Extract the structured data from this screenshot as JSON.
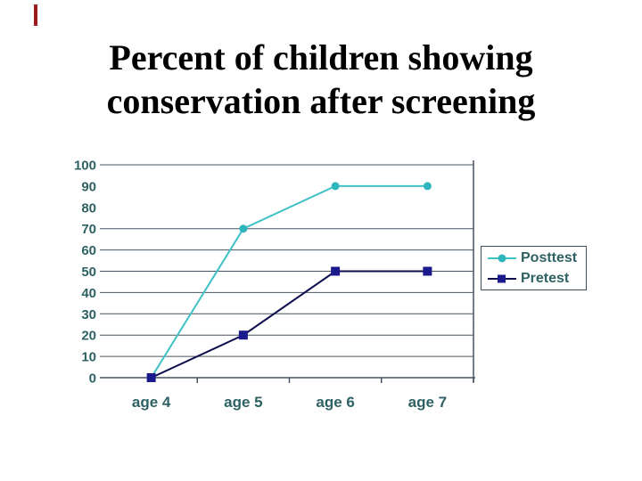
{
  "slide": {
    "title_line1": "Percent of children showing",
    "title_line2": "conservation after screening",
    "pen_mark_color": "#9B1C1C"
  },
  "chart_data": {
    "type": "line",
    "title": "",
    "xlabel": "",
    "ylabel": "",
    "categories": [
      "age 4",
      "age 5",
      "age 6",
      "age 7"
    ],
    "series": [
      {
        "name": "Posttest",
        "values": [
          0,
          70,
          90,
          90
        ],
        "color": "#3FC1C6",
        "marker_color": "#2FB5BC",
        "marker": "circle"
      },
      {
        "name": "Pretest",
        "values": [
          0,
          20,
          50,
          50
        ],
        "color": "#0E0E4E",
        "marker_color": "#1A1A8C",
        "marker": "square"
      }
    ],
    "ylim": [
      0,
      100
    ],
    "y_ticks": [
      0,
      10,
      20,
      30,
      40,
      50,
      60,
      70,
      80,
      90,
      100
    ],
    "gridline_values": [
      10,
      20,
      30,
      40,
      50,
      60,
      70,
      100
    ],
    "grid": "horizontal-only",
    "legend_position": "right",
    "axis_color": "#475460",
    "label_color": "#2E6164"
  }
}
